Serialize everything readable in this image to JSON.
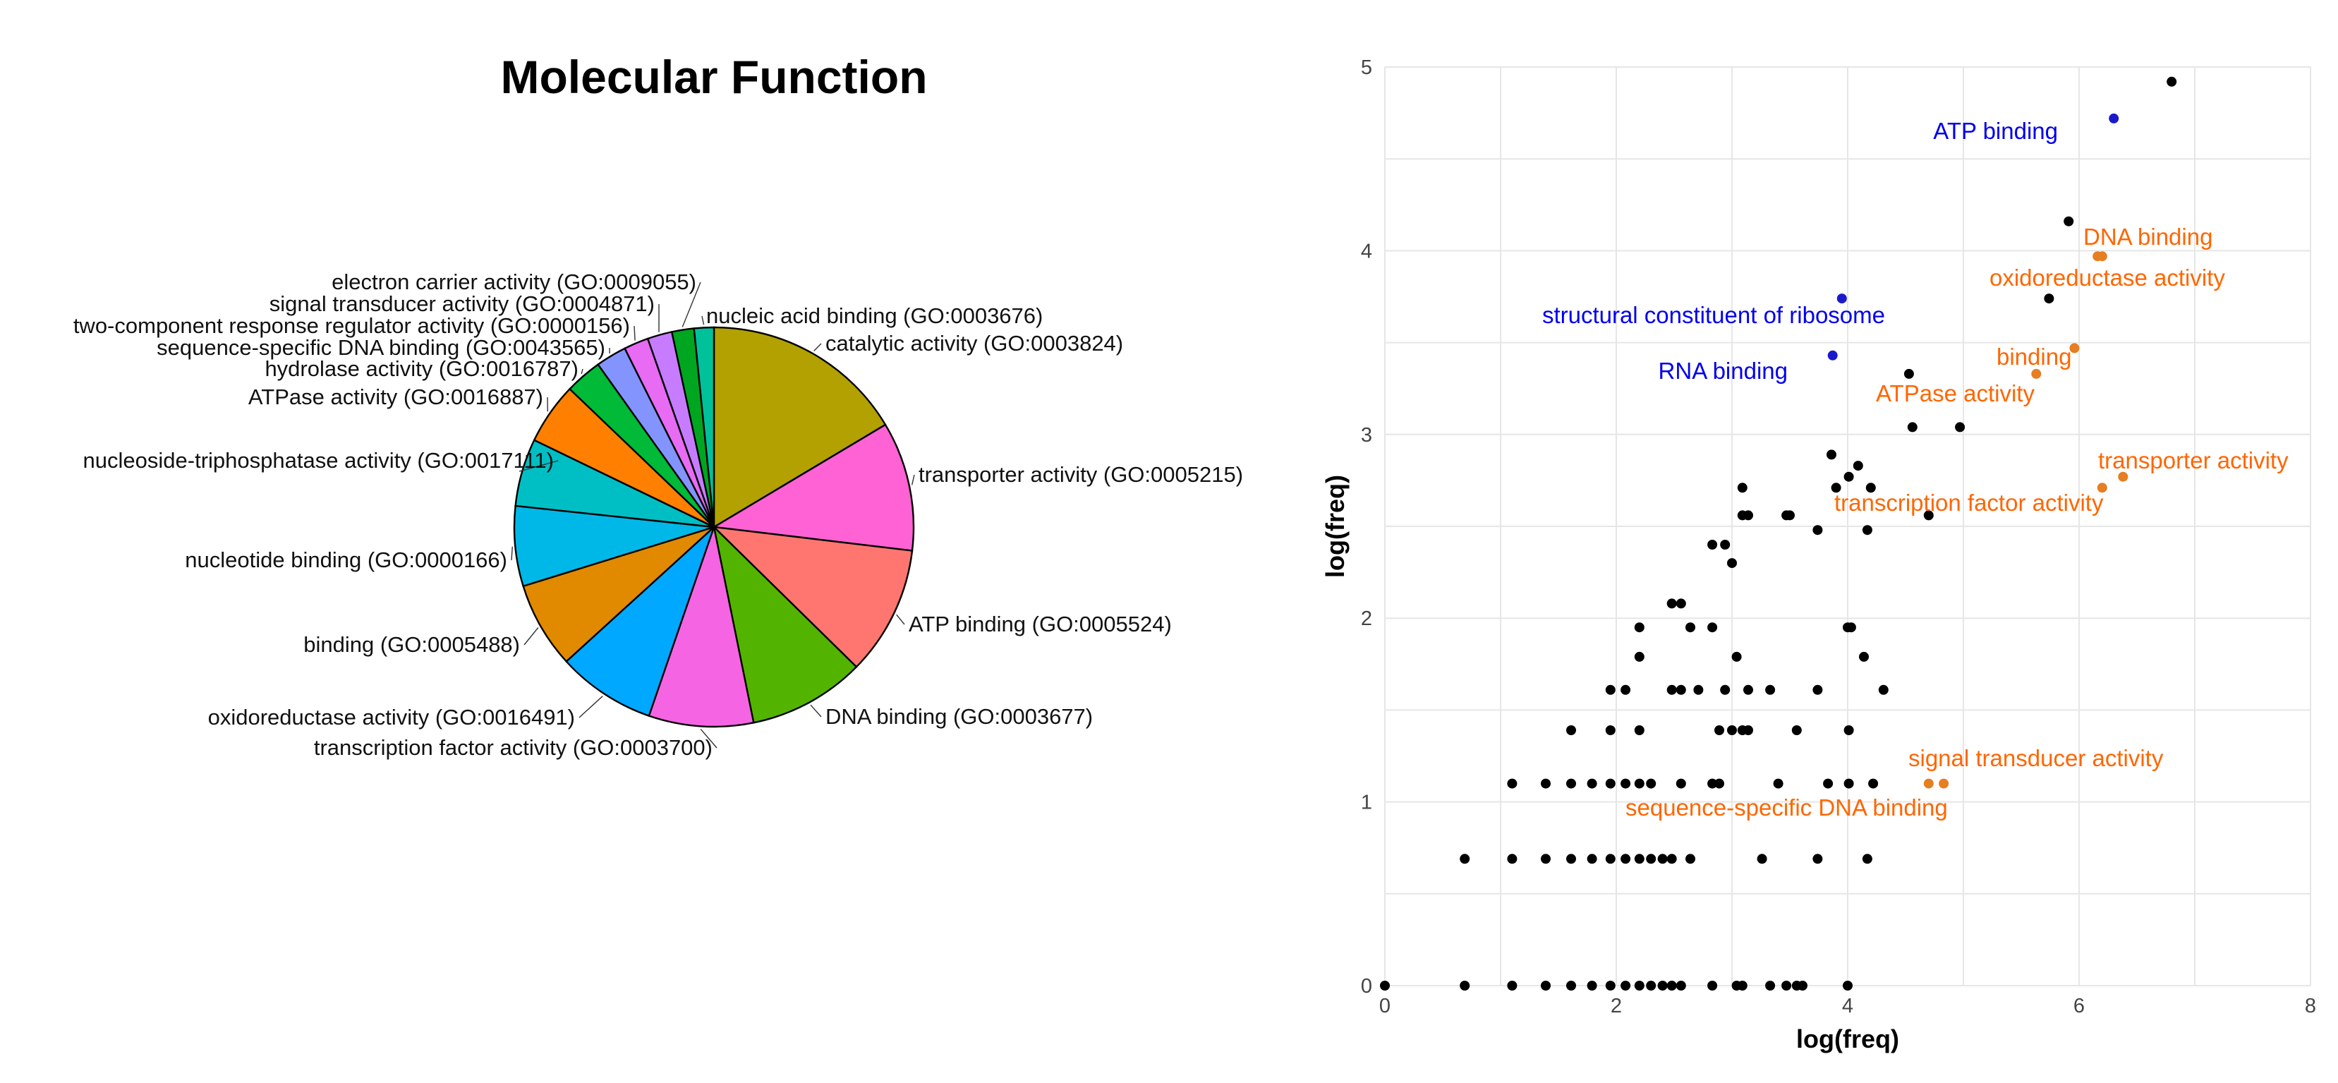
{
  "chart_data": [
    {
      "type": "pie",
      "title": "Molecular Function",
      "slices": [
        {
          "label": "catalytic activity (GO:0003824)",
          "value": 16.5,
          "color": "#B2A100"
        },
        {
          "label": "transporter activity (GO:0005215)",
          "value": 10.5,
          "color": "#FF62D4"
        },
        {
          "label": "ATP binding (GO:0005524)",
          "value": 10.5,
          "color": "#FF7670"
        },
        {
          "label": "DNA binding (GO:0003677)",
          "value": 9.5,
          "color": "#53B400"
        },
        {
          "label": "transcription factor activity (GO:0003700)",
          "value": 8.5,
          "color": "#F564E3"
        },
        {
          "label": "oxidoreductase activity (GO:0016491)",
          "value": 8.0,
          "color": "#00A9FF"
        },
        {
          "label": "binding (GO:0005488)",
          "value": 7.0,
          "color": "#E18A00"
        },
        {
          "label": "nucleotide binding (GO:0000166)",
          "value": 6.5,
          "color": "#00B8E7"
        },
        {
          "label": "nucleoside-triphosphatase activity (GO:0017111)",
          "value": 5.5,
          "color": "#00BFC4"
        },
        {
          "label": "ATPase activity (GO:0016887)",
          "value": 5.0,
          "color": "#FF8000"
        },
        {
          "label": "hydrolase activity (GO:0016787)",
          "value": 3.0,
          "color": "#00BA38"
        },
        {
          "label": "sequence-specific DNA binding (GO:0043565)",
          "value": 2.5,
          "color": "#8494FF"
        },
        {
          "label": "two-component response regulator activity (GO:0000156)",
          "value": 2.0,
          "color": "#E76BF3"
        },
        {
          "label": "signal transducer activity (GO:0004871)",
          "value": 2.0,
          "color": "#C77CFF"
        },
        {
          "label": "electron carrier activity (GO:0009055)",
          "value": 1.8,
          "color": "#00A520"
        },
        {
          "label": "nucleic acid binding (GO:0003676)",
          "value": 1.6,
          "color": "#00C19A"
        }
      ]
    },
    {
      "type": "scatter",
      "title": "",
      "xlabel": "log(freq)",
      "ylabel": "log(freq)",
      "xlim": [
        0,
        8
      ],
      "ylim": [
        0,
        5
      ],
      "xticks": [
        0,
        2,
        4,
        6,
        8
      ],
      "yticks": [
        0,
        1,
        2,
        3,
        4,
        5
      ],
      "grid": true,
      "default_color": "#000000",
      "points": [
        [
          0.0,
          0.0
        ],
        [
          0.69,
          0.0
        ],
        [
          1.1,
          0.0
        ],
        [
          1.39,
          0.0
        ],
        [
          1.61,
          0.0
        ],
        [
          1.79,
          0.0
        ],
        [
          1.95,
          0.0
        ],
        [
          2.08,
          0.0
        ],
        [
          2.2,
          0.0
        ],
        [
          2.3,
          0.0
        ],
        [
          2.4,
          0.0
        ],
        [
          2.48,
          0.0
        ],
        [
          2.56,
          0.0
        ],
        [
          2.83,
          0.0
        ],
        [
          3.04,
          0.0
        ],
        [
          3.09,
          0.0
        ],
        [
          3.33,
          0.0
        ],
        [
          3.47,
          0.0
        ],
        [
          3.56,
          0.0
        ],
        [
          3.61,
          0.0
        ],
        [
          4.0,
          0.0
        ],
        [
          0.69,
          0.69
        ],
        [
          1.1,
          0.69
        ],
        [
          1.39,
          0.69
        ],
        [
          1.61,
          0.69
        ],
        [
          1.79,
          0.69
        ],
        [
          1.95,
          0.69
        ],
        [
          2.08,
          0.69
        ],
        [
          2.2,
          0.69
        ],
        [
          2.3,
          0.69
        ],
        [
          2.4,
          0.69
        ],
        [
          2.48,
          0.69
        ],
        [
          2.64,
          0.69
        ],
        [
          3.26,
          0.69
        ],
        [
          3.74,
          0.69
        ],
        [
          4.17,
          0.69
        ],
        [
          1.1,
          1.1
        ],
        [
          1.39,
          1.1
        ],
        [
          1.61,
          1.1
        ],
        [
          1.79,
          1.1
        ],
        [
          1.95,
          1.1
        ],
        [
          2.08,
          1.1
        ],
        [
          2.2,
          1.1
        ],
        [
          2.3,
          1.1
        ],
        [
          2.56,
          1.1
        ],
        [
          2.83,
          1.1
        ],
        [
          2.89,
          1.1
        ],
        [
          3.4,
          1.1
        ],
        [
          3.83,
          1.1
        ],
        [
          4.01,
          1.1
        ],
        [
          4.22,
          1.1
        ],
        [
          1.61,
          1.39
        ],
        [
          1.95,
          1.39
        ],
        [
          2.2,
          1.39
        ],
        [
          2.89,
          1.39
        ],
        [
          3.0,
          1.39
        ],
        [
          3.09,
          1.39
        ],
        [
          3.14,
          1.39
        ],
        [
          3.56,
          1.39
        ],
        [
          4.01,
          1.39
        ],
        [
          1.95,
          1.61
        ],
        [
          2.08,
          1.61
        ],
        [
          2.48,
          1.61
        ],
        [
          2.56,
          1.61
        ],
        [
          2.71,
          1.61
        ],
        [
          2.94,
          1.61
        ],
        [
          3.14,
          1.61
        ],
        [
          3.33,
          1.61
        ],
        [
          3.74,
          1.61
        ],
        [
          4.31,
          1.61
        ],
        [
          2.2,
          1.79
        ],
        [
          3.04,
          1.79
        ],
        [
          4.14,
          1.79
        ],
        [
          2.2,
          1.95
        ],
        [
          2.64,
          1.95
        ],
        [
          2.83,
          1.95
        ],
        [
          4.0,
          1.95
        ],
        [
          4.03,
          1.95
        ],
        [
          2.48,
          2.08
        ],
        [
          2.56,
          2.08
        ],
        [
          2.83,
          2.4
        ],
        [
          2.94,
          2.4
        ],
        [
          3.0,
          2.3
        ],
        [
          3.74,
          2.48
        ],
        [
          4.17,
          2.48
        ],
        [
          4.7,
          2.56
        ],
        [
          3.09,
          2.56
        ],
        [
          3.14,
          2.56
        ],
        [
          3.47,
          2.56
        ],
        [
          3.5,
          2.56
        ],
        [
          3.09,
          2.71
        ],
        [
          3.9,
          2.71
        ],
        [
          4.01,
          2.77
        ],
        [
          4.09,
          2.83
        ],
        [
          4.2,
          2.71
        ],
        [
          3.86,
          2.89
        ],
        [
          4.56,
          3.04
        ],
        [
          4.97,
          3.04
        ],
        [
          4.53,
          3.33
        ],
        [
          5.74,
          3.74
        ],
        [
          5.91,
          4.16
        ],
        [
          6.8,
          4.92
        ]
      ],
      "highlighted": [
        {
          "x": 6.3,
          "y": 4.72,
          "color": "#1A1ACC",
          "label": "ATP binding"
        },
        {
          "x": 3.95,
          "y": 3.74,
          "color": "#1A1ACC",
          "label": "structural constituent of ribosome"
        },
        {
          "x": 3.87,
          "y": 3.43,
          "color": "#1A1ACC",
          "label": "RNA binding"
        },
        {
          "x": 6.16,
          "y": 3.97,
          "color": "#E67E22",
          "label": "DNA binding"
        },
        {
          "x": 6.2,
          "y": 3.97,
          "color": "#E67E22",
          "label": "oxidoreductase activity"
        },
        {
          "x": 5.96,
          "y": 3.47,
          "color": "#E67E22",
          "label": "binding"
        },
        {
          "x": 5.63,
          "y": 3.33,
          "color": "#E67E22",
          "label": "ATPase activity"
        },
        {
          "x": 6.38,
          "y": 2.77,
          "color": "#E67E22",
          "label": "transporter activity"
        },
        {
          "x": 6.2,
          "y": 2.71,
          "color": "#E67E22",
          "label": "transcription factor activity"
        },
        {
          "x": 4.83,
          "y": 1.1,
          "color": "#E67E22",
          "label": "signal transducer activity"
        },
        {
          "x": 4.7,
          "y": 1.1,
          "color": "#E67E22",
          "label": "sequence-specific DNA binding"
        }
      ],
      "label_colors": {
        "blue": "#0000EE",
        "orange": "#FF6600"
      }
    }
  ]
}
